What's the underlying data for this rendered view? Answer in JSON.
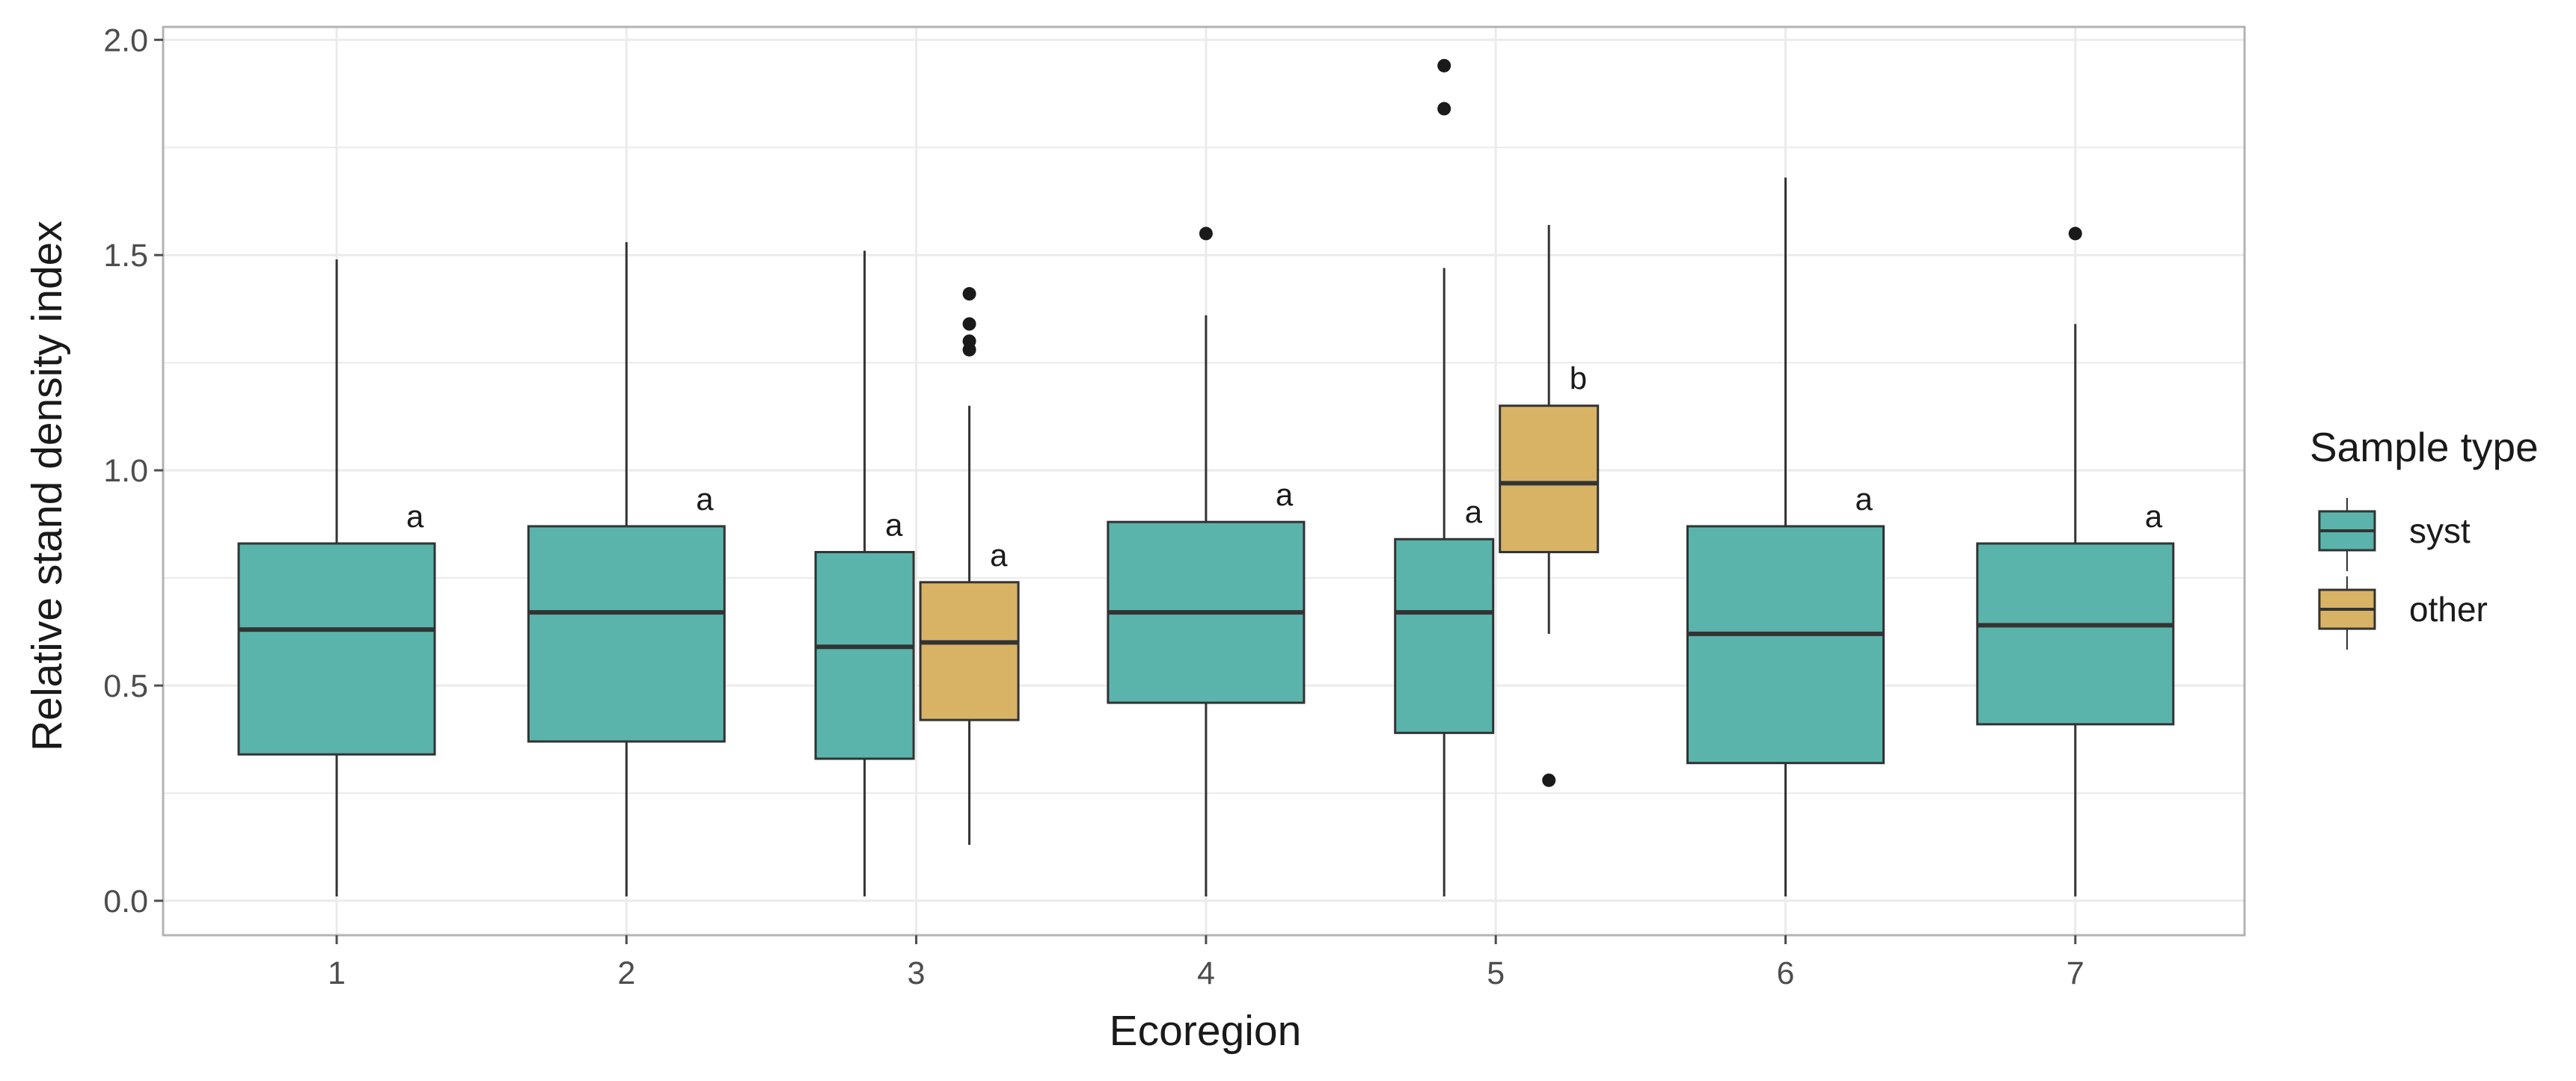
{
  "chart_data": {
    "type": "boxplot",
    "title": "",
    "xlabel": "Ecoregion",
    "ylabel": "Relative stand density index",
    "ylim": [
      -0.08,
      2.03
    ],
    "yticks": [
      0.0,
      0.5,
      1.0,
      1.5,
      2.0
    ],
    "ytick_labels": [
      "0.0",
      "0.5",
      "1.0",
      "1.5",
      "2.0"
    ],
    "categories": [
      "1",
      "2",
      "3",
      "4",
      "5",
      "6",
      "7"
    ],
    "grid": true,
    "legend": {
      "title": "Sample type",
      "placement": "right",
      "entries": [
        {
          "name": "syst",
          "color": "#5ab4ac"
        },
        {
          "name": "other",
          "color": "#d8b365"
        }
      ]
    },
    "boxes": [
      {
        "category": "1",
        "group": "syst",
        "whisker_low": 0.01,
        "q1": 0.34,
        "median": 0.63,
        "q3": 0.83,
        "whisker_high": 1.49,
        "outliers": [],
        "label": "a"
      },
      {
        "category": "2",
        "group": "syst",
        "whisker_low": 0.01,
        "q1": 0.37,
        "median": 0.67,
        "q3": 0.87,
        "whisker_high": 1.53,
        "outliers": [],
        "label": "a"
      },
      {
        "category": "3",
        "group": "syst",
        "whisker_low": 0.01,
        "q1": 0.33,
        "median": 0.59,
        "q3": 0.81,
        "whisker_high": 1.51,
        "outliers": [],
        "label": "a"
      },
      {
        "category": "3",
        "group": "other",
        "whisker_low": 0.13,
        "q1": 0.42,
        "median": 0.6,
        "q3": 0.74,
        "whisker_high": 1.15,
        "outliers": [
          1.28,
          1.3,
          1.34,
          1.41
        ],
        "label": "a"
      },
      {
        "category": "4",
        "group": "syst",
        "whisker_low": 0.01,
        "q1": 0.46,
        "median": 0.67,
        "q3": 0.88,
        "whisker_high": 1.36,
        "outliers": [
          1.55
        ],
        "label": "a"
      },
      {
        "category": "5",
        "group": "syst",
        "whisker_low": 0.01,
        "q1": 0.39,
        "median": 0.67,
        "q3": 0.84,
        "whisker_high": 1.47,
        "outliers": [
          1.84,
          1.94
        ],
        "label": "a"
      },
      {
        "category": "5",
        "group": "other",
        "whisker_low": 0.62,
        "q1": 0.81,
        "median": 0.97,
        "q3": 1.15,
        "whisker_high": 1.57,
        "outliers": [
          0.28
        ],
        "label": "b"
      },
      {
        "category": "6",
        "group": "syst",
        "whisker_low": 0.01,
        "q1": 0.32,
        "median": 0.62,
        "q3": 0.87,
        "whisker_high": 1.68,
        "outliers": [],
        "label": "a"
      },
      {
        "category": "7",
        "group": "syst",
        "whisker_low": 0.01,
        "q1": 0.41,
        "median": 0.64,
        "q3": 0.83,
        "whisker_high": 1.34,
        "outliers": [
          1.55
        ],
        "label": "a"
      }
    ]
  }
}
